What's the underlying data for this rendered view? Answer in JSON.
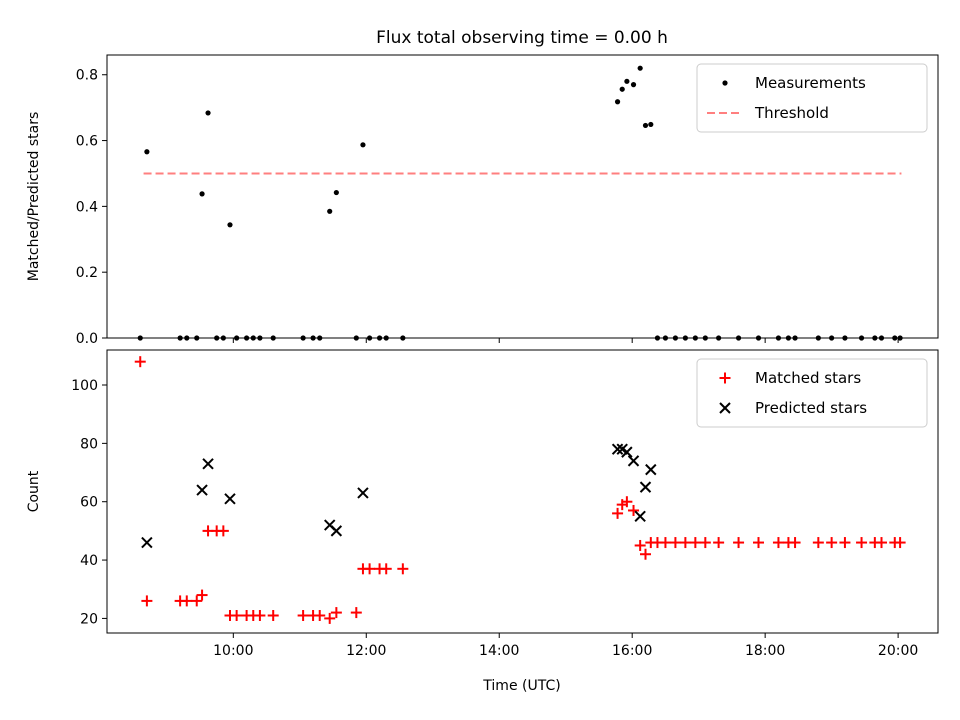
{
  "chart_data": [
    {
      "type": "scatter",
      "title": "Flux total observing time = 0.00 h",
      "xlabel": "",
      "ylabel": "Matched/Predicted stars",
      "xlim": [
        8.1,
        20.6
      ],
      "ylim": [
        0,
        0.86
      ],
      "yticks": [
        0.0,
        0.2,
        0.4,
        0.6,
        0.8
      ],
      "ytick_labels": [
        "0.0",
        "0.2",
        "0.4",
        "0.6",
        "0.8"
      ],
      "grid": false,
      "legend": "top-right",
      "series": [
        {
          "name": "Measurements",
          "color": "#000000",
          "marker": "dot",
          "points": [
            [
              8.6,
              0.0
            ],
            [
              8.7,
              0.566
            ],
            [
              9.2,
              0.0
            ],
            [
              9.3,
              0.0
            ],
            [
              9.45,
              0.0
            ],
            [
              9.53,
              0.438
            ],
            [
              9.62,
              0.684
            ],
            [
              9.75,
              0.0
            ],
            [
              9.85,
              0.0
            ],
            [
              9.95,
              0.344
            ],
            [
              10.05,
              0.0
            ],
            [
              10.2,
              0.0
            ],
            [
              10.3,
              0.0
            ],
            [
              10.4,
              0.0
            ],
            [
              10.6,
              0.0
            ],
            [
              11.05,
              0.0
            ],
            [
              11.2,
              0.0
            ],
            [
              11.3,
              0.0
            ],
            [
              11.45,
              0.385
            ],
            [
              11.55,
              0.442
            ],
            [
              11.85,
              0.0
            ],
            [
              11.95,
              0.587
            ],
            [
              12.05,
              0.0
            ],
            [
              12.2,
              0.0
            ],
            [
              12.3,
              0.0
            ],
            [
              12.55,
              0.0
            ],
            [
              15.78,
              0.718
            ],
            [
              15.85,
              0.756
            ],
            [
              15.92,
              0.78
            ],
            [
              16.02,
              0.77
            ],
            [
              16.12,
              0.82
            ],
            [
              16.2,
              0.646
            ],
            [
              16.28,
              0.649
            ],
            [
              16.38,
              0.0
            ],
            [
              16.5,
              0.0
            ],
            [
              16.65,
              0.0
            ],
            [
              16.8,
              0.0
            ],
            [
              16.95,
              0.0
            ],
            [
              17.1,
              0.0
            ],
            [
              17.3,
              0.0
            ],
            [
              17.6,
              0.0
            ],
            [
              17.9,
              0.0
            ],
            [
              18.2,
              0.0
            ],
            [
              18.35,
              0.0
            ],
            [
              18.45,
              0.0
            ],
            [
              18.8,
              0.0
            ],
            [
              19.0,
              0.0
            ],
            [
              19.2,
              0.0
            ],
            [
              19.45,
              0.0
            ],
            [
              19.65,
              0.0
            ],
            [
              19.75,
              0.0
            ],
            [
              19.95,
              0.0
            ],
            [
              20.03,
              0.0
            ]
          ]
        },
        {
          "name": "Threshold",
          "color": "#ff7f7f",
          "marker": "dashed-line",
          "points": [
            [
              8.65,
              0.5
            ],
            [
              20.05,
              0.5
            ]
          ]
        }
      ]
    },
    {
      "type": "scatter",
      "title": "",
      "xlabel": "Time (UTC)",
      "ylabel": "Count",
      "xlim": [
        8.1,
        20.6
      ],
      "ylim": [
        15,
        112
      ],
      "xticks": [
        10,
        12,
        14,
        16,
        18,
        20
      ],
      "xtick_labels": [
        "10:00",
        "12:00",
        "14:00",
        "16:00",
        "18:00",
        "20:00"
      ],
      "yticks": [
        20,
        40,
        60,
        80,
        100
      ],
      "ytick_labels": [
        "20",
        "40",
        "60",
        "80",
        "100"
      ],
      "grid": false,
      "legend": "top-right",
      "series": [
        {
          "name": "Matched stars",
          "color": "#ff0000",
          "marker": "plus",
          "points": [
            [
              8.6,
              108
            ],
            [
              8.7,
              26
            ],
            [
              9.2,
              26
            ],
            [
              9.3,
              26
            ],
            [
              9.45,
              26
            ],
            [
              9.53,
              28
            ],
            [
              9.62,
              50
            ],
            [
              9.75,
              50
            ],
            [
              9.85,
              50
            ],
            [
              9.95,
              21
            ],
            [
              10.05,
              21
            ],
            [
              10.2,
              21
            ],
            [
              10.3,
              21
            ],
            [
              10.4,
              21
            ],
            [
              10.6,
              21
            ],
            [
              11.05,
              21
            ],
            [
              11.2,
              21
            ],
            [
              11.3,
              21
            ],
            [
              11.45,
              20
            ],
            [
              11.55,
              22
            ],
            [
              11.85,
              22
            ],
            [
              11.95,
              37
            ],
            [
              12.05,
              37
            ],
            [
              12.2,
              37
            ],
            [
              12.3,
              37
            ],
            [
              12.55,
              37
            ],
            [
              15.78,
              56
            ],
            [
              15.85,
              59
            ],
            [
              15.92,
              60
            ],
            [
              16.02,
              57
            ],
            [
              16.12,
              45
            ],
            [
              16.2,
              42
            ],
            [
              16.28,
              46
            ],
            [
              16.38,
              46
            ],
            [
              16.5,
              46
            ],
            [
              16.65,
              46
            ],
            [
              16.8,
              46
            ],
            [
              16.95,
              46
            ],
            [
              17.1,
              46
            ],
            [
              17.3,
              46
            ],
            [
              17.6,
              46
            ],
            [
              17.9,
              46
            ],
            [
              18.2,
              46
            ],
            [
              18.35,
              46
            ],
            [
              18.45,
              46
            ],
            [
              18.8,
              46
            ],
            [
              19.0,
              46
            ],
            [
              19.2,
              46
            ],
            [
              19.45,
              46
            ],
            [
              19.65,
              46
            ],
            [
              19.75,
              46
            ],
            [
              19.95,
              46
            ],
            [
              20.03,
              46
            ]
          ]
        },
        {
          "name": "Predicted stars",
          "color": "#000000",
          "marker": "x",
          "points": [
            [
              8.7,
              46
            ],
            [
              9.53,
              64
            ],
            [
              9.62,
              73
            ],
            [
              9.95,
              61
            ],
            [
              11.45,
              52
            ],
            [
              11.55,
              50
            ],
            [
              11.95,
              63
            ],
            [
              15.78,
              78
            ],
            [
              15.85,
              78
            ],
            [
              15.92,
              77
            ],
            [
              16.02,
              74
            ],
            [
              16.12,
              55
            ],
            [
              16.2,
              65
            ],
            [
              16.28,
              71
            ]
          ]
        }
      ]
    }
  ]
}
